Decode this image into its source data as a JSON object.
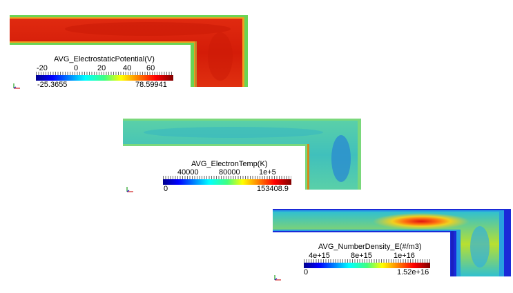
{
  "panels": [
    {
      "id": "potential",
      "title": "AVG_ElectrostaticPotential(V)",
      "ticks": [
        "-20",
        "0",
        "20",
        "40",
        "60"
      ],
      "min": "-25.3655",
      "max": "78.59941",
      "colors": {
        "core": "#d8200a",
        "edge": "#66d24a",
        "wall": "#c08a2a"
      }
    },
    {
      "id": "etemp",
      "title": "AVG_ElectronTemp(K)",
      "ticks": [
        "40000",
        "80000",
        "1e+5"
      ],
      "min": "0",
      "max": "153408.9",
      "colors": {
        "core": "#46c6b4",
        "edge": "#78d880",
        "wall": "#d48a1a"
      }
    },
    {
      "id": "ndensity",
      "title": "AVG_NumberDensity_E(#/m3)",
      "ticks": [
        "4e+15",
        "8e+15",
        "1e+16"
      ],
      "min": "0",
      "max": "1.52e+16",
      "colors": {
        "core": "#e8d020",
        "edge": "#1a2fd8",
        "wall": "#1a20c0"
      }
    }
  ]
}
